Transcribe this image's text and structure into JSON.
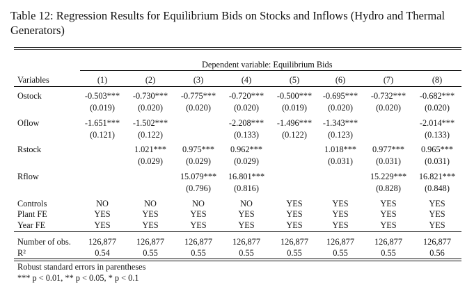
{
  "title": "Table 12: Regression Results for Equilibrium Bids on Stocks and Inflows (Hydro and Thermal Generators)",
  "dependent_variable": "Dependent variable: Equilibrium Bids",
  "variables_header": "Variables",
  "columns": [
    "(1)",
    "(2)",
    "(3)",
    "(4)",
    "(5)",
    "(6)",
    "(7)",
    "(8)"
  ],
  "coef_rows": [
    {
      "label": "Ostock",
      "coef": [
        "-0.503***",
        "-0.730***",
        "-0.775***",
        "-0.720***",
        "-0.500***",
        "-0.695***",
        "-0.732***",
        "-0.682***"
      ],
      "se": [
        "(0.019)",
        "(0.020)",
        "(0.020)",
        "(0.020)",
        "(0.019)",
        "(0.020)",
        "(0.020)",
        "(0.020)"
      ]
    },
    {
      "label": "Oflow",
      "coef": [
        "-1.651***",
        "-1.502***",
        "",
        "-2.208***",
        "-1.496***",
        "-1.343***",
        "",
        "-2.014***"
      ],
      "se": [
        "(0.121)",
        "(0.122)",
        "",
        "(0.133)",
        "(0.122)",
        "(0.123)",
        "",
        "(0.133)"
      ]
    },
    {
      "label": "Rstock",
      "coef": [
        "",
        "1.021***",
        "0.975***",
        "0.962***",
        "",
        "1.018***",
        "0.977***",
        "0.965***"
      ],
      "se": [
        "",
        "(0.029)",
        "(0.029)",
        "(0.029)",
        "",
        "(0.031)",
        "(0.031)",
        "(0.031)"
      ]
    },
    {
      "label": "Rflow",
      "coef": [
        "",
        "",
        "15.079***",
        "16.801***",
        "",
        "",
        "15.229***",
        "16.821***"
      ],
      "se": [
        "",
        "",
        "(0.796)",
        "(0.816)",
        "",
        "",
        "(0.828)",
        "(0.848)"
      ]
    }
  ],
  "fe_rows": [
    {
      "label": "Controls",
      "values": [
        "NO",
        "NO",
        "NO",
        "NO",
        "YES",
        "YES",
        "YES",
        "YES"
      ]
    },
    {
      "label": "Plant FE",
      "values": [
        "YES",
        "YES",
        "YES",
        "YES",
        "YES",
        "YES",
        "YES",
        "YES"
      ]
    },
    {
      "label": "Year FE",
      "values": [
        "YES",
        "YES",
        "YES",
        "YES",
        "YES",
        "YES",
        "YES",
        "YES"
      ]
    }
  ],
  "stat_rows": [
    {
      "label": "Number of obs.",
      "values": [
        "126,877",
        "126,877",
        "126,877",
        "126,877",
        "126,877",
        "126,877",
        "126,877",
        "126,877"
      ]
    },
    {
      "label": "R²",
      "values": [
        "0.54",
        "0.55",
        "0.55",
        "0.55",
        "0.55",
        "0.55",
        "0.55",
        "0.56"
      ]
    }
  ],
  "notes": [
    "Robust standard errors in parentheses",
    "*** p < 0.01, ** p < 0.05, * p < 0.1"
  ]
}
